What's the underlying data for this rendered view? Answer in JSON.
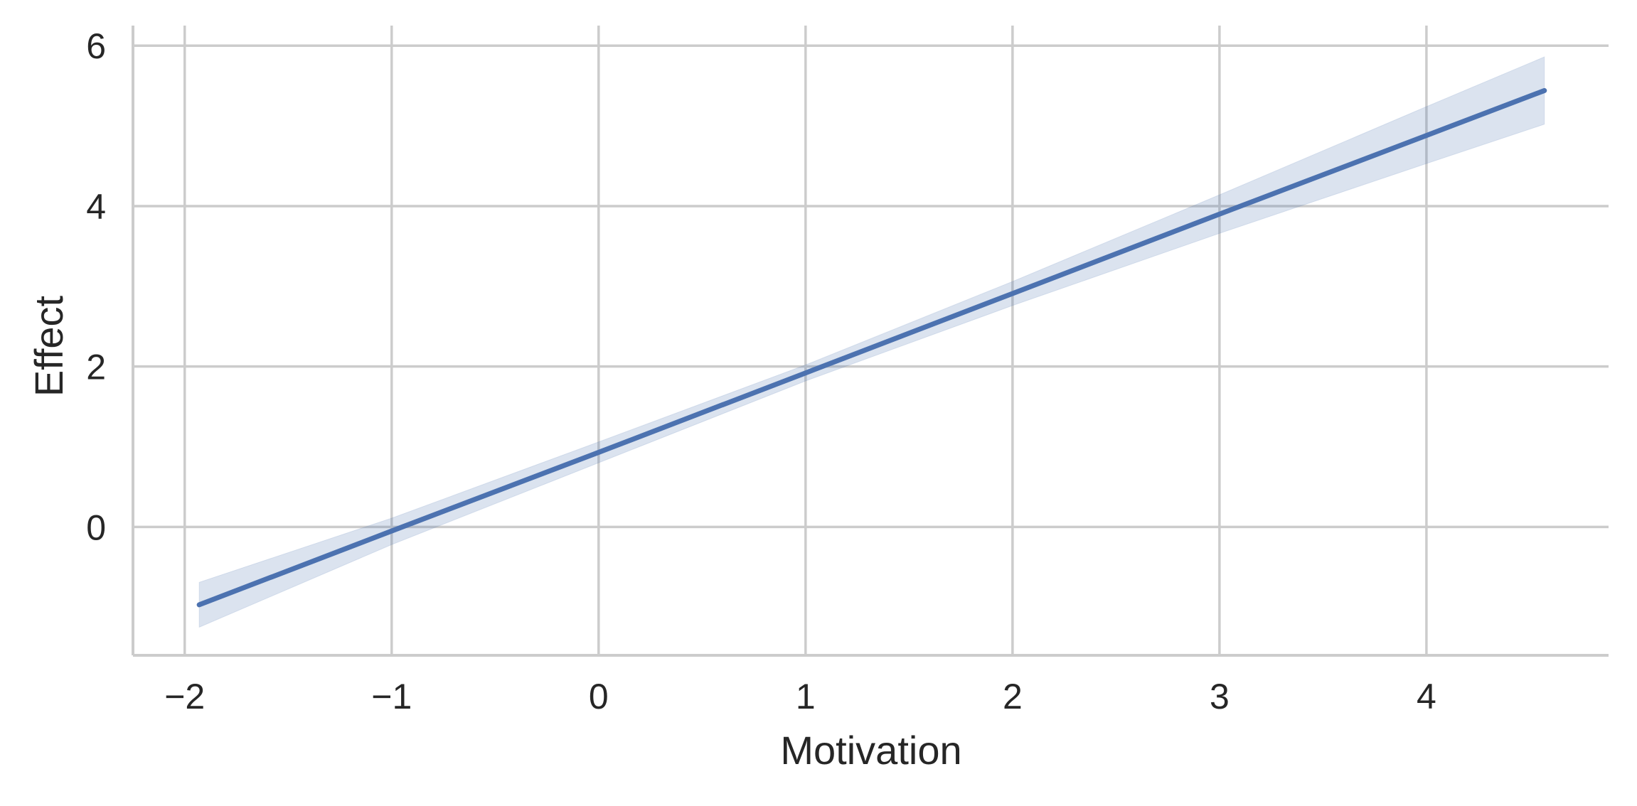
{
  "chart_data": {
    "type": "line",
    "title": "",
    "xlabel": "Motivation",
    "ylabel": "Effect",
    "xlim": [
      -2.25,
      4.88
    ],
    "ylim": [
      -1.6,
      6.25
    ],
    "xticks": [
      -2,
      -1,
      0,
      1,
      2,
      3,
      4
    ],
    "yticks": [
      0,
      2,
      4,
      6
    ],
    "xtick_labels": [
      "−2",
      "−1",
      "0",
      "1",
      "2",
      "3",
      "4"
    ],
    "ytick_labels": [
      "0",
      "2",
      "4",
      "6"
    ],
    "grid": true,
    "legend": "none",
    "series": [
      {
        "x": [
          -1.93,
          -1.0,
          0.0,
          1.0,
          2.0,
          3.0,
          4.0,
          4.57
        ],
        "y": [
          -0.97,
          -0.05,
          0.93,
          1.92,
          2.91,
          3.9,
          4.88,
          5.44
        ],
        "ci_lower": [
          -1.25,
          -0.22,
          0.8,
          1.82,
          2.76,
          3.66,
          4.53,
          5.02
        ],
        "ci_upper": [
          -0.69,
          0.11,
          1.06,
          2.02,
          3.06,
          4.14,
          5.24,
          5.86
        ],
        "color": "#4c72b0"
      }
    ],
    "colors": {
      "line": "#4c72b0",
      "band": "#4c72b0",
      "grid": "#cccccc",
      "spine": "#cccccc",
      "text": "#262626"
    }
  }
}
